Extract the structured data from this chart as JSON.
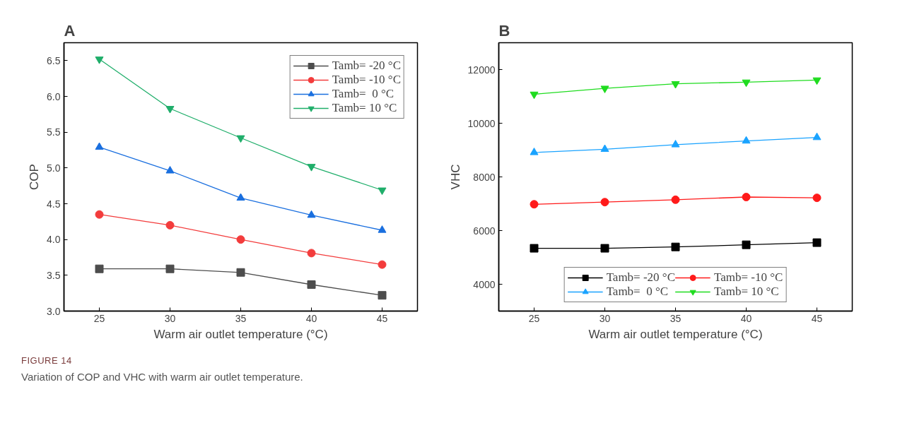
{
  "chart_data": [
    {
      "type": "line",
      "title": "A",
      "xlabel": "Warm air outlet temperature (°C)",
      "ylabel": "COP",
      "x": [
        25,
        30,
        35,
        40,
        45
      ],
      "xlim": [
        22.5,
        47.5
      ],
      "xticks": [
        25,
        30,
        35,
        40,
        45
      ],
      "ylim": [
        3.0,
        6.75
      ],
      "yticks": [
        {
          "value": 3.0,
          "label": "3.0"
        },
        3.5,
        {
          "value": 4.0,
          "label": "4.0"
        },
        4.5,
        {
          "value": 5.0,
          "label": "5.0"
        },
        5.5,
        {
          "value": 6.0,
          "label": "6.0"
        },
        6.5
      ],
      "grid": false,
      "legend": "top right",
      "line_style": "solid",
      "series": [
        {
          "name": "Tamb= -20 °C",
          "color": "#4d4d4d",
          "marker": "square",
          "values": [
            3.59,
            3.59,
            3.54,
            3.37,
            3.22
          ]
        },
        {
          "name": "Tamb= -10 °C",
          "color": "#f33c3c",
          "marker": "circle",
          "values": [
            4.35,
            4.2,
            4.0,
            3.81,
            3.65
          ]
        },
        {
          "name": "Tamb=  0 °C",
          "color": "#1a6fdf",
          "marker": "triangle",
          "values": [
            5.29,
            4.96,
            4.58,
            4.34,
            4.13
          ]
        },
        {
          "name": "Tamb= 10 °C",
          "color": "#1fae6a",
          "marker": "triangle",
          "values": [
            6.52,
            5.83,
            5.42,
            5.02,
            4.69
          ]
        }
      ],
      "annotations": [
        "FIGURE 14",
        "Variation of COP and VHC with warm air outlet temperature."
      ]
    },
    {
      "type": "line",
      "title": "B",
      "xlabel": "Warm air outlet temperature (°C)",
      "ylabel": "VHC",
      "x": [
        25,
        30,
        35,
        40,
        45
      ],
      "xlim": [
        22.5,
        47.5
      ],
      "xticks": [
        25,
        30,
        35,
        40,
        45
      ],
      "ylim": [
        3000,
        13000
      ],
      "yticks": [
        4000,
        6000,
        8000,
        10000,
        12000
      ],
      "grid": false,
      "legend": "bottom",
      "line_style": "solid",
      "series": [
        {
          "name": "Tamb= -20 °C",
          "color": "#000000",
          "marker": "square",
          "values": [
            5340,
            5340,
            5390,
            5470,
            5550
          ]
        },
        {
          "name": "Tamb= -10 °C",
          "color": "#ff1a1a",
          "marker": "circle",
          "values": [
            6980,
            7060,
            7150,
            7250,
            7220
          ]
        },
        {
          "name": "Tamb=  0 °C",
          "color": "#1aa3ff",
          "marker": "triangle",
          "values": [
            8910,
            9030,
            9200,
            9340,
            9470
          ]
        },
        {
          "name": "Tamb= 10 °C",
          "color": "#1fdc1f",
          "marker": "triangle",
          "values": [
            11080,
            11300,
            11470,
            11530,
            11610
          ]
        }
      ]
    }
  ]
}
